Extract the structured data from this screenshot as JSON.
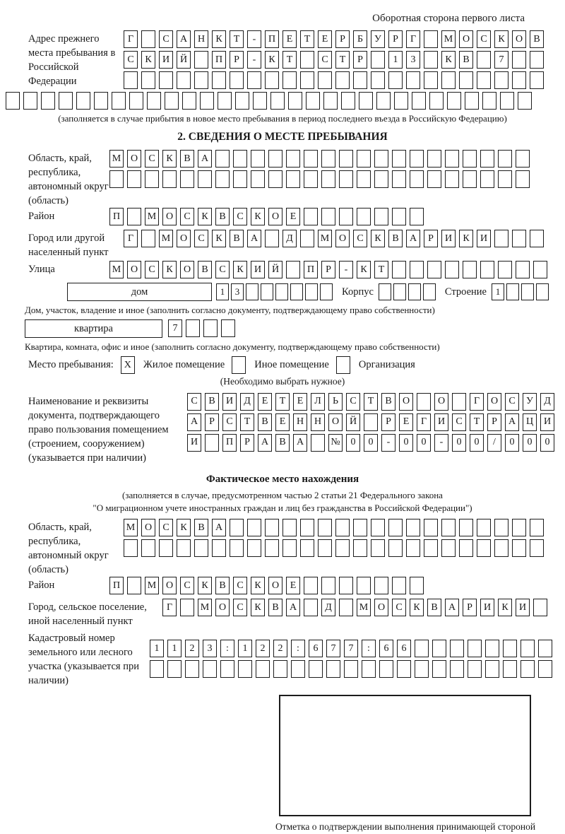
{
  "page": {
    "side_note": "Оборотная сторона первого листа"
  },
  "prev_address": {
    "label": "Адрес прежнего места пребывания в Российской Федерации",
    "row1": {
      "cells": "Г САНКТ-ПЕТЕРБУРГ МОСКОВ",
      "count": 24
    },
    "row2": {
      "cells": "СКИЙ ПР-КТ СТР 13 КВ 7",
      "count": 24
    },
    "row3": {
      "cells": "",
      "count": 24
    },
    "row4": {
      "cells": "",
      "count": 30
    },
    "caption": "(заполняется в случае прибытия в новое место пребывания в период последнего въезда в Российскую Федерацию)"
  },
  "section2": {
    "title": "2. СВЕДЕНИЯ О МЕСТЕ ПРЕБЫВАНИЯ",
    "oblast": {
      "label": "Область, край, республика, автономный округ (область)",
      "row1": {
        "cells": "МОСКВА",
        "count": 24
      },
      "row2": {
        "cells": "",
        "count": 24
      }
    },
    "raion": {
      "label": "Район",
      "row": {
        "cells": "П МОСКВСКОЕ",
        "count": 18
      }
    },
    "city": {
      "label": "Город или другой населенный пункт",
      "row": {
        "cells": "Г МОСКВА Д МОСКВАРИКИ",
        "count": 24
      }
    },
    "street": {
      "label": "Улица",
      "row": {
        "cells": "МОСКОВСКИЙ ПР-КТ",
        "count": 25
      }
    },
    "house": {
      "box_label": "дом",
      "number": {
        "cells": "13",
        "count": 8
      },
      "korpus_label": "Корпус",
      "korpus": {
        "cells": "",
        "count": 4
      },
      "stroenie_label": "Строение",
      "stroenie": {
        "cells": "1",
        "count": 4
      }
    },
    "house_caption": "Дом, участок, владение и иное (заполнить согласно документу, подтверждающему право собственности)",
    "apartment": {
      "box_label": "квартира",
      "number": {
        "cells": "7",
        "count": 4
      }
    },
    "apartment_caption": "Квартира, комната, офис и иное (заполнить согласно документу, подтверждающему право собственности)",
    "stay_type": {
      "label": "Место пребывания:",
      "options": [
        {
          "label": "Жилое помещение",
          "mark": "X"
        },
        {
          "label": "Иное помещение",
          "mark": ""
        },
        {
          "label": "Организация",
          "mark": ""
        }
      ],
      "hint": "(Необходимо выбрать нужное)"
    },
    "doc": {
      "label": "Наименование и реквизиты документа, подтверждающего право пользования помещением (строением, сооружением) (указывается при наличии)",
      "row1": {
        "cells": "СВИДЕТЕЛЬСТВО О ГОСУД",
        "count": 21
      },
      "row2": {
        "cells": "АРСТВЕННОЙ РЕГИСТРАЦИ",
        "count": 21
      },
      "row3": {
        "cells": "И ПРАВА №00-00-00/000",
        "count": 21
      }
    }
  },
  "actual_location": {
    "title": "Фактическое место нахождения",
    "caption1": "(заполняется в случае, предусмотренном частью 2 статьи 21 Федерального закона",
    "caption2": "\"О миграционном учете иностранных граждан и лиц без гражданства в Российской Федерации\")",
    "oblast": {
      "label": "Область, край, республика, автономный округ (область)",
      "row1": {
        "cells": "МОСКВА",
        "count": 24
      },
      "row2": {
        "cells": "",
        "count": 24
      }
    },
    "raion": {
      "label": "Район",
      "row": {
        "cells": "П МОСКВСКОЕ",
        "count": 18
      }
    },
    "city": {
      "label": "Город, сельское поселение, иной населенный пункт",
      "row": {
        "cells": "Г МОСКВА Д МОСКВАРИКИ",
        "count": 22
      }
    },
    "cadastre": {
      "label": "Кадастровый номер земельного или лесного участка (указывается при наличии)",
      "row1": {
        "cells": "1123:122:677:66",
        "count": 23
      },
      "row2": {
        "cells": "",
        "count": 23
      }
    },
    "stamp_note": "Отметка о подтверждении выполнения принимающей стороной и иностранным гражданином или лицом без гражданства действий, необходимых для его постановки на учет по месту пребывания"
  }
}
